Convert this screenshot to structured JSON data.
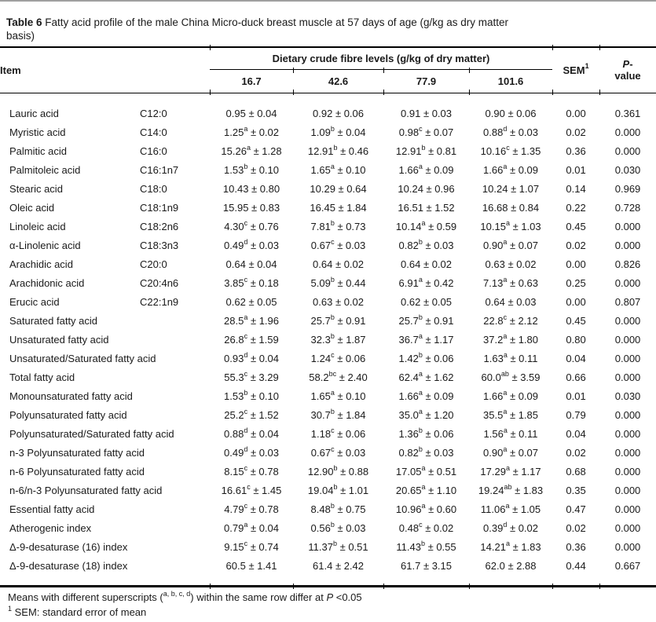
{
  "title": {
    "label": "Table 6",
    "text": " Fatty acid profile of the male China Micro-duck breast muscle at 57 days of age (g/kg as dry matter\nbasis)"
  },
  "table": {
    "header": {
      "item": "Item",
      "span": "Dietary crude fibre levels (g/kg of dry matter)",
      "levels": [
        "16.7",
        "42.6",
        "77.9",
        "101.6"
      ],
      "sem": "SEM^{1}",
      "pvalue": "/{P}-\nvalue"
    },
    "rows": [
      {
        "item": "Lauric acid",
        "code": "C12:0",
        "values": [
          "0.95 ± 0.04",
          "0.92 ± 0.06",
          "0.91 ± 0.03",
          "0.90 ± 0.06"
        ],
        "sem": "0.00",
        "p": "0.361"
      },
      {
        "item": "Myristic acid",
        "code": "C14:0",
        "values": [
          "1.25^{a} ± 0.02",
          "1.09^{b} ± 0.04",
          "0.98^{c} ± 0.07",
          "0.88^{d} ± 0.03"
        ],
        "sem": "0.02",
        "p": "0.000"
      },
      {
        "item": "Palmitic acid",
        "code": "C16:0",
        "values": [
          "15.26^{a} ± 1.28",
          "12.91^{b} ± 0.46",
          "12.91^{b} ± 0.81",
          "10.16^{c} ± 1.35"
        ],
        "sem": "0.36",
        "p": "0.000"
      },
      {
        "item": "Palmitoleic acid",
        "code": "C16:1n7",
        "values": [
          "1.53^{b} ± 0.10",
          "1.65^{a} ± 0.10",
          "1.66^{a} ± 0.09",
          "1.66^{a} ± 0.09"
        ],
        "sem": "0.01",
        "p": "0.030"
      },
      {
        "item": "Stearic acid",
        "code": "C18:0",
        "values": [
          "10.43 ± 0.80",
          "10.29 ± 0.64",
          "10.24 ± 0.96",
          "10.24 ± 1.07"
        ],
        "sem": "0.14",
        "p": "0.969"
      },
      {
        "item": "Oleic acid",
        "code": "C18:1n9",
        "values": [
          "15.95 ± 0.83",
          "16.45 ± 1.84",
          "16.51 ± 1.52",
          "16.68 ± 0.84"
        ],
        "sem": "0.22",
        "p": "0.728"
      },
      {
        "item": "Linoleic acid",
        "code": "C18:2n6",
        "values": [
          "4.30^{c} ± 0.76",
          "7.81^{b} ± 0.73",
          "10.14^{a} ± 0.59",
          "10.15^{a} ± 1.03"
        ],
        "sem": "0.45",
        "p": "0.000"
      },
      {
        "item": "α-Linolenic acid",
        "code": "C18:3n3",
        "values": [
          "0.49^{d} ± 0.03",
          "0.67^{c} ± 0.03",
          "0.82^{b} ± 0.03",
          "0.90^{a} ± 0.07"
        ],
        "sem": "0.02",
        "p": "0.000"
      },
      {
        "item": "Arachidic acid",
        "code": "C20:0",
        "values": [
          "0.64 ± 0.04",
          "0.64 ± 0.02",
          "0.64 ± 0.02",
          "0.63 ± 0.02"
        ],
        "sem": "0.00",
        "p": "0.826"
      },
      {
        "item": "Arachidonic acid",
        "code": "C20:4n6",
        "values": [
          "3.85^{c} ± 0.18",
          "5.09^{b} ± 0.44",
          "6.91^{a} ± 0.42",
          "7.13^{a} ± 0.63"
        ],
        "sem": "0.25",
        "p": "0.000"
      },
      {
        "item": "Erucic acid",
        "code": "C22:1n9",
        "values": [
          "0.62 ± 0.05",
          "0.63 ± 0.02",
          "0.62 ± 0.05",
          "0.64 ± 0.03"
        ],
        "sem": "0.00",
        "p": "0.807"
      },
      {
        "item": "Saturated fatty acid",
        "code": "",
        "values": [
          "28.5^{a} ± 1.96",
          "25.7^{b} ± 0.91",
          "25.7^{b} ± 0.91",
          "22.8^{c} ± 2.12"
        ],
        "sem": "0.45",
        "p": "0.000"
      },
      {
        "item": "Unsaturated fatty acid",
        "code": "",
        "values": [
          "26.8^{c} ± 1.59",
          "32.3^{b} ± 1.87",
          "36.7^{a} ± 1.17",
          "37.2^{a} ± 1.80"
        ],
        "sem": "0.80",
        "p": "0.000"
      },
      {
        "item": "Unsaturated/Saturated fatty acid",
        "code": "",
        "values": [
          "0.93^{d} ± 0.04",
          "1.24^{c} ± 0.06",
          "1.42^{b} ± 0.06",
          "1.63^{a} ± 0.11"
        ],
        "sem": "0.04",
        "p": "0.000"
      },
      {
        "item": "Total fatty acid",
        "code": "",
        "values": [
          "55.3^{c} ± 3.29",
          "58.2^{bc} ± 2.40",
          "62.4^{a} ± 1.62",
          "60.0^{ab} ± 3.59"
        ],
        "sem": "0.66",
        "p": "0.000"
      },
      {
        "item": "Monounsaturated fatty acid",
        "code": "",
        "values": [
          "1.53^{b} ± 0.10",
          "1.65^{a} ± 0.10",
          "1.66^{a} ± 0.09",
          "1.66^{a} ± 0.09"
        ],
        "sem": "0.01",
        "p": "0.030"
      },
      {
        "item": "Polyunsaturated fatty acid",
        "code": "",
        "values": [
          "25.2^{c} ± 1.52",
          "30.7^{b} ± 1.84",
          "35.0^{a} ± 1.20",
          "35.5^{a} ± 1.85"
        ],
        "sem": "0.79",
        "p": "0.000"
      },
      {
        "item": "Polyunsaturated/Saturated fatty acid",
        "code": "",
        "values": [
          "0.88^{d} ± 0.04",
          "1.18^{c} ± 0.06",
          "1.36^{b} ± 0.06",
          "1.56^{a} ± 0.11"
        ],
        "sem": "0.04",
        "p": "0.000"
      },
      {
        "item": "n-3 Polyunsaturated fatty acid",
        "code": "",
        "values": [
          "0.49^{d} ± 0.03",
          "0.67^{c} ± 0.03",
          "0.82^{b} ± 0.03",
          "0.90^{a} ± 0.07"
        ],
        "sem": "0.02",
        "p": "0.000"
      },
      {
        "item": "n-6 Polyunsaturated fatty acid",
        "code": "",
        "values": [
          "8.15^{c} ± 0.78",
          "12.90^{b} ± 0.88",
          "17.05^{a} ± 0.51",
          "17.29^{a} ± 1.17"
        ],
        "sem": "0.68",
        "p": "0.000"
      },
      {
        "item": "n-6/n-3 Polyunsaturated fatty acid",
        "code": "",
        "values": [
          "16.61^{c} ± 1.45",
          "19.04^{b} ± 1.01",
          "20.65^{a} ± 1.10",
          "19.24^{ab} ± 1.83"
        ],
        "sem": "0.35",
        "p": "0.000"
      },
      {
        "item": "Essential fatty acid",
        "code": "",
        "values": [
          "4.79^{c} ± 0.78",
          "8.48^{b} ± 0.75",
          "10.96^{a} ± 0.60",
          "11.06^{a} ± 1.05"
        ],
        "sem": "0.47",
        "p": "0.000"
      },
      {
        "item": "Atherogenic index",
        "code": "",
        "values": [
          "0.79^{a} ± 0.04",
          "0.56^{b} ± 0.03",
          "0.48^{c} ± 0.02",
          "0.39^{d} ± 0.02"
        ],
        "sem": "0.02",
        "p": "0.000"
      },
      {
        "item": "Δ-9-desaturase (16) index",
        "code": "",
        "values": [
          "9.15^{c} ± 0.74",
          "11.37^{b} ± 0.51",
          "11.43^{b} ± 0.55",
          "14.21^{a} ± 1.83"
        ],
        "sem": "0.36",
        "p": "0.000"
      },
      {
        "item": "Δ-9-desaturase (18) index",
        "code": "",
        "values": [
          "60.5 ± 1.41",
          "61.4 ± 2.42",
          "61.7 ± 3.15",
          "62.0 ± 2.88"
        ],
        "sem": "0.44",
        "p": "0.667"
      }
    ]
  },
  "footnotes": [
    "Means with different superscripts (^{a, b, c, d}) within the same row differ at /{P} <0.05",
    "^{1} SEM: standard error of mean"
  ]
}
